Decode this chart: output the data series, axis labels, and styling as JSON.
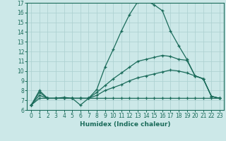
{
  "xlabel": "Humidex (Indice chaleur)",
  "xlim": [
    -0.5,
    23.5
  ],
  "ylim": [
    6,
    17
  ],
  "xticks": [
    0,
    1,
    2,
    3,
    4,
    5,
    6,
    7,
    8,
    9,
    10,
    11,
    12,
    13,
    14,
    15,
    16,
    17,
    18,
    19,
    20,
    21,
    22,
    23
  ],
  "yticks": [
    6,
    7,
    8,
    9,
    10,
    11,
    12,
    13,
    14,
    15,
    16,
    17
  ],
  "bg_color": "#cce8e8",
  "line_color": "#1a6b5a",
  "grid_color": "#aacfcf",
  "series": [
    [
      6.5,
      8.0,
      7.2,
      7.2,
      7.3,
      7.2,
      6.5,
      7.2,
      8.1,
      10.4,
      12.2,
      14.1,
      15.8,
      17.1,
      17.2,
      16.8,
      16.2,
      14.1,
      12.6,
      11.2,
      9.5,
      9.2,
      7.4,
      7.2
    ],
    [
      6.5,
      7.8,
      7.2,
      7.2,
      7.2,
      7.2,
      7.2,
      7.2,
      7.8,
      8.5,
      9.2,
      9.8,
      10.4,
      11.0,
      11.2,
      11.4,
      11.6,
      11.5,
      11.2,
      11.1,
      9.5,
      9.2,
      7.4,
      7.2
    ],
    [
      6.5,
      7.5,
      7.2,
      7.2,
      7.2,
      7.2,
      7.2,
      7.2,
      7.5,
      8.0,
      8.3,
      8.6,
      9.0,
      9.3,
      9.5,
      9.7,
      9.9,
      10.1,
      10.0,
      9.8,
      9.5,
      9.2,
      7.4,
      7.2
    ],
    [
      6.5,
      7.2,
      7.2,
      7.2,
      7.2,
      7.2,
      7.2,
      7.2,
      7.2,
      7.2,
      7.2,
      7.2,
      7.2,
      7.2,
      7.2,
      7.2,
      7.2,
      7.2,
      7.2,
      7.2,
      7.2,
      7.2,
      7.2,
      7.2
    ]
  ]
}
